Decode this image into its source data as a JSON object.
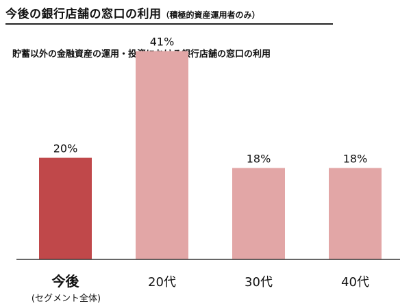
{
  "header": {
    "title": "今後の銀行店舗の窓口の利用",
    "title_note": "（積極的資産運用者のみ）"
  },
  "chart_data": {
    "type": "bar",
    "title": "今後の銀行店舗の窓口の利用（積極的資産運用者のみ）",
    "subtitle": "貯蓄以外の金融資産の運用・投資における銀行店舗の窓口の利用",
    "categories": [
      "今後",
      "20代",
      "30代",
      "40代"
    ],
    "category_notes": [
      "(セグメント全体)",
      "",
      "",
      ""
    ],
    "values": [
      20,
      41,
      18,
      18
    ],
    "value_labels": [
      "20%",
      "41%",
      "18%",
      "18%"
    ],
    "unit": "%",
    "ylim": [
      0,
      45
    ],
    "grid": false,
    "colors": [
      "#c0484a",
      "#e2a6a6",
      "#e2a6a6",
      "#e2a6a6"
    ],
    "highlight_index": 0
  }
}
